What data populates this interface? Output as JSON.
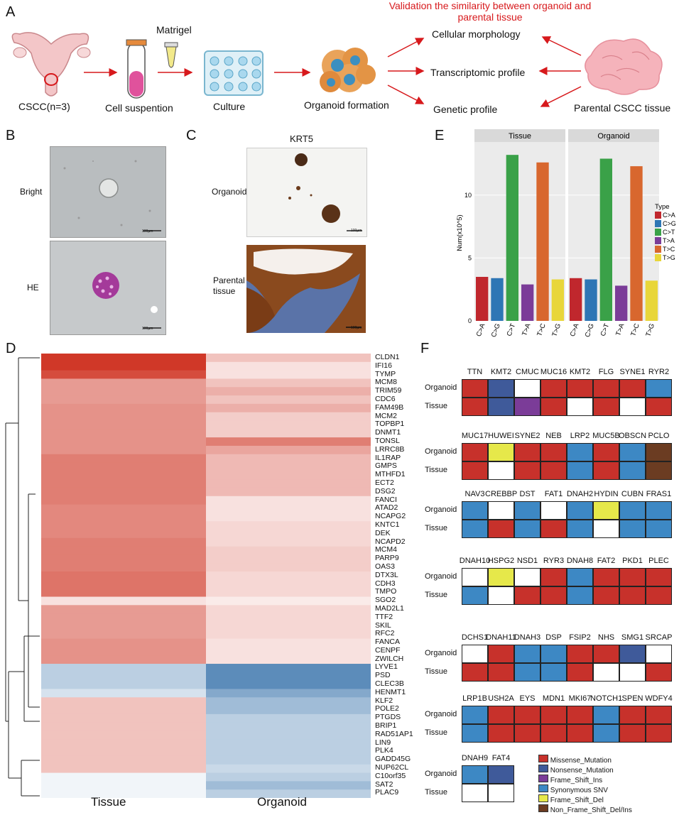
{
  "panel_labels": {
    "a": "A",
    "b": "B",
    "c": "C",
    "d": "D",
    "e": "E",
    "f": "F"
  },
  "panelA": {
    "validation_title": "Validation the similarity between organoid and parental tissue",
    "cscc": "CSCC(n=3)",
    "matrigel": "Matrigel",
    "cell_suspension": "Cell suspention",
    "culture": "Culture",
    "organoid_formation": "Organoid formation",
    "cellular_morphology": "Cellular morphology",
    "transcriptomic_profile": "Transcriptomic profile",
    "genetic_profile": "Genetic profile",
    "parental_tissue": "Parental CSCC tissue",
    "colors": {
      "arrow": "#d7191c",
      "tube": "#e0529c",
      "organoid": "#e9a35a"
    }
  },
  "panelB": {
    "bright": "Bright",
    "he": "HE",
    "scale": "100µm"
  },
  "panelC": {
    "title": "KRT5",
    "organoid": "Organoid",
    "parental": "Parental tissue",
    "scale": "100µm"
  },
  "chart_data": [
    {
      "type": "bar",
      "title": "",
      "facets": [
        "Tissue",
        "Organoid"
      ],
      "categories": [
        "C>A",
        "C>G",
        "C>T",
        "T>A",
        "T>C",
        "T>G"
      ],
      "series": [
        {
          "name": "Tissue",
          "values": [
            3.5,
            3.4,
            13.2,
            2.9,
            12.6,
            3.3
          ]
        },
        {
          "name": "Organoid",
          "values": [
            3.4,
            3.3,
            12.9,
            2.8,
            12.3,
            3.2
          ]
        }
      ],
      "ylabel": "Num(x10^5)",
      "yticks": [
        "0",
        "5",
        "10"
      ],
      "ylim": [
        0,
        14
      ],
      "legend_title": "Type",
      "legend": [
        "C>A",
        "C>G",
        "C>T",
        "T>A",
        "T>C",
        "T>G"
      ],
      "colors": [
        "#c0272d",
        "#2e76b5",
        "#3aa148",
        "#7b3c98",
        "#d8672e",
        "#e8d63a"
      ]
    },
    {
      "type": "heatmap",
      "columns": [
        "Tissue",
        "Organoid"
      ],
      "genes": [
        "CLDN1",
        "IFI16",
        "TYMP",
        "MCM8",
        "TRIM59",
        "CDC6",
        "FAM49B",
        "MCM2",
        "TOPBP1",
        "DNMT1",
        "TONSL",
        "LRRC8B",
        "IL1RAP",
        "GMPS",
        "MTHFD1",
        "ECT2",
        "DSG2",
        "FANCI",
        "ATAD2",
        "NCAPG2",
        "KNTC1",
        "DEK",
        "NCAPD2",
        "MCM4",
        "PARP9",
        "OAS3",
        "DTX3L",
        "CDH3",
        "TMPO",
        "SGO2",
        "MAD2L1",
        "TTF2",
        "SKIL",
        "RFC2",
        "FANCA",
        "CENPF",
        "ZWILCH",
        "LYVE1",
        "PSD",
        "CLEC3B",
        "HENMT1",
        "KLF2",
        "POLE2",
        "PTGDS",
        "BRIP1",
        "RAD51AP1",
        "LIN9",
        "PLK4",
        "GADD45G",
        "NUP62CL",
        "C10orf35",
        "SAT2",
        "PLAC9"
      ],
      "tissue": [
        2.0,
        2.0,
        1.8,
        1.0,
        1.0,
        1.0,
        1.1,
        1.1,
        1.1,
        1.1,
        1.1,
        1.1,
        1.3,
        1.3,
        1.3,
        1.3,
        1.3,
        1.3,
        1.2,
        1.2,
        1.2,
        1.2,
        1.3,
        1.3,
        1.3,
        1.3,
        1.4,
        1.4,
        1.4,
        0.3,
        1.0,
        1.0,
        1.0,
        1.0,
        1.1,
        1.1,
        1.1,
        -0.5,
        -0.5,
        -0.5,
        -0.3,
        0.6,
        0.6,
        0.6,
        0.6,
        0.6,
        0.6,
        0.6,
        0.6,
        0.6,
        -0.1,
        -0.1,
        -0.1
      ],
      "organoid": [
        0.6,
        0.3,
        0.3,
        0.6,
        0.8,
        0.6,
        0.8,
        0.5,
        0.5,
        0.5,
        1.3,
        0.9,
        0.7,
        0.7,
        0.7,
        0.7,
        0.7,
        0.3,
        0.3,
        0.3,
        0.4,
        0.4,
        0.4,
        0.5,
        0.5,
        0.5,
        0.4,
        0.4,
        0.4,
        0.2,
        0.4,
        0.4,
        0.4,
        0.4,
        0.3,
        0.3,
        0.3,
        -1.2,
        -1.2,
        -1.2,
        -0.9,
        -0.7,
        -0.7,
        -0.5,
        -0.5,
        -0.5,
        -0.5,
        -0.5,
        -0.5,
        -0.4,
        -0.5,
        -0.7,
        -0.5
      ]
    },
    {
      "type": "table",
      "row_labels": [
        "Organoid",
        "Tissue"
      ],
      "blocks": [
        {
          "genes": [
            "TTN",
            "KMT2",
            "CMUC",
            "MUC16",
            "KMT2",
            "FLG",
            "SYNE1",
            "RYR2"
          ],
          "organoid": [
            "M",
            "N",
            "E",
            "M",
            "M",
            "M",
            "M",
            "S"
          ],
          "tissue": [
            "M",
            "N",
            "F",
            "M",
            "E",
            "M",
            "E",
            "M"
          ]
        },
        {
          "genes": [
            "MUC17",
            "HUWEI",
            "SYNE2",
            "NEB",
            "LRP2",
            "MUC5B",
            "OBSCN",
            "PCLO"
          ],
          "organoid": [
            "M",
            "D",
            "M",
            "M",
            "S",
            "M",
            "S",
            "B"
          ],
          "tissue": [
            "M",
            "E",
            "M",
            "M",
            "S",
            "M",
            "S",
            "B"
          ]
        },
        {
          "genes": [
            "NAV3",
            "CREBBP",
            "DST",
            "FAT1",
            "DNAH2",
            "HYDIN",
            "CUBN",
            "FRAS1"
          ],
          "organoid": [
            "S",
            "E",
            "S",
            "E",
            "S",
            "D",
            "S",
            "S"
          ],
          "tissue": [
            "S",
            "M",
            "S",
            "M",
            "S",
            "E",
            "S",
            "S"
          ]
        },
        {
          "genes": [
            "DNAH10",
            "HSPG2",
            "NSD1",
            "RYR3",
            "DNAH8",
            "FAT2",
            "PKD1",
            "PLEC"
          ],
          "organoid": [
            "E",
            "D",
            "E",
            "M",
            "S",
            "M",
            "M",
            "M"
          ],
          "tissue": [
            "S",
            "E",
            "M",
            "M",
            "S",
            "M",
            "M",
            "M"
          ]
        },
        {
          "genes": [
            "DCHS1",
            "DNAH11",
            "DNAH3",
            "DSP",
            "FSIP2",
            "NHS",
            "SMG1",
            "SRCAP"
          ],
          "organoid": [
            "E",
            "M",
            "S",
            "S",
            "M",
            "M",
            "N",
            "E"
          ],
          "tissue": [
            "M",
            "M",
            "S",
            "S",
            "M",
            "E",
            "E",
            "M"
          ]
        },
        {
          "genes": [
            "LRP1B",
            "USH2A",
            "EYS",
            "MDN1",
            "MKI67",
            "NOTCH1",
            "SPEN",
            "WDFY4"
          ],
          "organoid": [
            "S",
            "M",
            "M",
            "M",
            "M",
            "S",
            "M",
            "M"
          ],
          "tissue": [
            "S",
            "M",
            "M",
            "M",
            "M",
            "S",
            "M",
            "M"
          ]
        },
        {
          "genes": [
            "DNAH9",
            "FAT4"
          ],
          "organoid": [
            "S",
            "N"
          ],
          "tissue": [
            "E",
            "E"
          ]
        }
      ],
      "legend": [
        {
          "code": "M",
          "label": "Missense_Mutation",
          "color": "#c7312b"
        },
        {
          "code": "N",
          "label": "Nonsense_Mutation",
          "color": "#3f5a9a"
        },
        {
          "code": "F",
          "label": "Frame_Shift_Ins",
          "color": "#7b3c98"
        },
        {
          "code": "S",
          "label": "Synonymous SNV",
          "color": "#3d88c4"
        },
        {
          "code": "D",
          "label": "Frame_Shift_Del",
          "color": "#e6e84a"
        },
        {
          "code": "B",
          "label": "Non_Frame_Shift_Del/Ins",
          "color": "#6b3c22"
        }
      ]
    }
  ]
}
